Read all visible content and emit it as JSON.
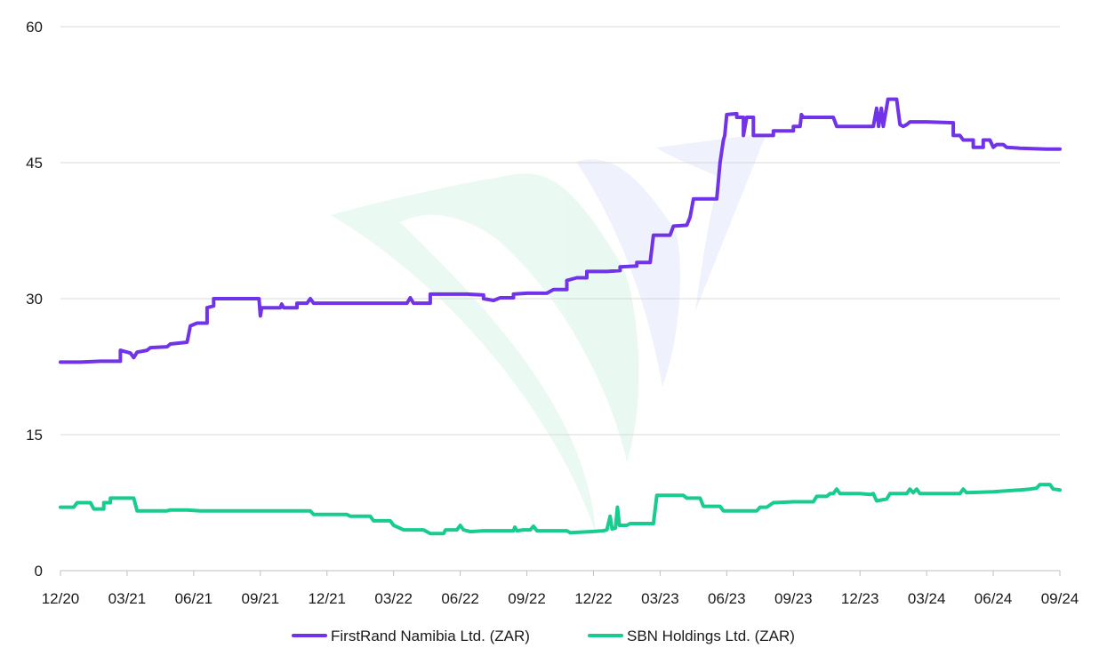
{
  "chart_data": {
    "type": "line",
    "title": "",
    "xlabel": "",
    "ylabel": "",
    "ylim": [
      0,
      60
    ],
    "yticks": [
      "0",
      "15",
      "30",
      "45",
      "60"
    ],
    "xticks": [
      "12/20",
      "03/21",
      "06/21",
      "09/21",
      "12/21",
      "03/22",
      "06/22",
      "09/22",
      "12/22",
      "03/23",
      "06/23",
      "09/23",
      "12/23",
      "03/24",
      "06/24",
      "09/24"
    ],
    "grid": "horizontal",
    "legend": "bottom-center",
    "series": [
      {
        "name": "FirstRand Namibia Ltd. (ZAR)",
        "color": "#7033e8",
        "points": [
          [
            0.0,
            23.0
          ],
          [
            0.3,
            23.0
          ],
          [
            0.6,
            23.1
          ],
          [
            0.9,
            23.1
          ],
          [
            0.9,
            24.3
          ],
          [
            1.05,
            24.0
          ],
          [
            1.1,
            23.5
          ],
          [
            1.15,
            24.1
          ],
          [
            1.3,
            24.3
          ],
          [
            1.35,
            24.6
          ],
          [
            1.6,
            24.7
          ],
          [
            1.65,
            25.0
          ],
          [
            1.9,
            25.2
          ],
          [
            1.95,
            27.0
          ],
          [
            2.05,
            27.3
          ],
          [
            2.2,
            27.3
          ],
          [
            2.2,
            29.0
          ],
          [
            2.3,
            29.2
          ],
          [
            2.3,
            30.0
          ],
          [
            2.6,
            30.0
          ],
          [
            2.98,
            30.0
          ],
          [
            3.0,
            28.1
          ],
          [
            3.02,
            29.0
          ],
          [
            3.3,
            29.0
          ],
          [
            3.32,
            29.4
          ],
          [
            3.35,
            29.0
          ],
          [
            3.55,
            29.0
          ],
          [
            3.55,
            29.5
          ],
          [
            3.7,
            29.5
          ],
          [
            3.75,
            30.0
          ],
          [
            3.8,
            29.5
          ],
          [
            4.0,
            29.5
          ],
          [
            4.4,
            29.5
          ],
          [
            4.9,
            29.5
          ],
          [
            5.2,
            29.5
          ],
          [
            5.25,
            30.1
          ],
          [
            5.3,
            29.5
          ],
          [
            5.55,
            29.5
          ],
          [
            5.55,
            30.5
          ],
          [
            6.1,
            30.5
          ],
          [
            6.35,
            30.4
          ],
          [
            6.35,
            30.0
          ],
          [
            6.5,
            29.8
          ],
          [
            6.6,
            30.1
          ],
          [
            6.8,
            30.1
          ],
          [
            6.8,
            30.5
          ],
          [
            7.0,
            30.6
          ],
          [
            7.3,
            30.6
          ],
          [
            7.4,
            31.0
          ],
          [
            7.6,
            31.0
          ],
          [
            7.6,
            32.0
          ],
          [
            7.75,
            32.3
          ],
          [
            7.9,
            32.3
          ],
          [
            7.9,
            33.0
          ],
          [
            8.2,
            33.0
          ],
          [
            8.4,
            33.1
          ],
          [
            8.4,
            33.5
          ],
          [
            8.65,
            33.6
          ],
          [
            8.65,
            34.0
          ],
          [
            8.85,
            34.0
          ],
          [
            8.9,
            37.0
          ],
          [
            9.15,
            37.0
          ],
          [
            9.2,
            38.0
          ],
          [
            9.4,
            38.1
          ],
          [
            9.45,
            39.0
          ],
          [
            9.5,
            41.0
          ],
          [
            9.85,
            41.0
          ],
          [
            9.9,
            45.0
          ],
          [
            9.95,
            47.5
          ],
          [
            9.97,
            48.0
          ],
          [
            10.0,
            50.3
          ],
          [
            10.15,
            50.4
          ],
          [
            10.15,
            50.0
          ],
          [
            10.25,
            50.0
          ],
          [
            10.25,
            48.0
          ],
          [
            10.3,
            50.0
          ],
          [
            10.4,
            50.0
          ],
          [
            10.4,
            48.0
          ],
          [
            10.7,
            48.0
          ],
          [
            10.7,
            48.5
          ],
          [
            11.0,
            48.5
          ],
          [
            11.0,
            49.0
          ],
          [
            11.1,
            49.0
          ],
          [
            11.12,
            50.3
          ],
          [
            11.15,
            50.0
          ],
          [
            11.6,
            50.0
          ],
          [
            11.65,
            49.0
          ],
          [
            11.9,
            49.0
          ],
          [
            12.2,
            49.0
          ],
          [
            12.25,
            51.0
          ],
          [
            12.28,
            49.0
          ],
          [
            12.32,
            51.0
          ],
          [
            12.35,
            49.0
          ],
          [
            12.42,
            52.0
          ],
          [
            12.55,
            52.0
          ],
          [
            12.6,
            49.2
          ],
          [
            12.65,
            49.0
          ],
          [
            12.7,
            49.2
          ],
          [
            12.75,
            49.5
          ],
          [
            13.0,
            49.5
          ],
          [
            13.4,
            49.4
          ],
          [
            13.4,
            48.0
          ],
          [
            13.5,
            48.0
          ],
          [
            13.55,
            47.5
          ],
          [
            13.7,
            47.5
          ],
          [
            13.7,
            46.7
          ],
          [
            13.85,
            46.7
          ],
          [
            13.85,
            47.5
          ],
          [
            13.95,
            47.5
          ],
          [
            14.0,
            46.7
          ],
          [
            14.05,
            47.0
          ],
          [
            14.15,
            47.0
          ],
          [
            14.2,
            46.7
          ],
          [
            14.4,
            46.6
          ],
          [
            14.8,
            46.5
          ],
          [
            15.0,
            46.5
          ]
        ]
      },
      {
        "name": "SBN Holdings Ltd. (ZAR)",
        "color": "#18cc8f",
        "points": [
          [
            0.0,
            7.0
          ],
          [
            0.2,
            7.0
          ],
          [
            0.25,
            7.5
          ],
          [
            0.45,
            7.5
          ],
          [
            0.5,
            6.8
          ],
          [
            0.65,
            6.8
          ],
          [
            0.65,
            7.5
          ],
          [
            0.75,
            7.5
          ],
          [
            0.75,
            8.0
          ],
          [
            1.1,
            8.0
          ],
          [
            1.15,
            6.6
          ],
          [
            1.6,
            6.6
          ],
          [
            1.65,
            6.7
          ],
          [
            1.9,
            6.7
          ],
          [
            2.1,
            6.6
          ],
          [
            2.5,
            6.6
          ],
          [
            3.0,
            6.6
          ],
          [
            3.5,
            6.6
          ],
          [
            3.75,
            6.6
          ],
          [
            3.8,
            6.2
          ],
          [
            4.3,
            6.2
          ],
          [
            4.35,
            6.0
          ],
          [
            4.65,
            6.0
          ],
          [
            4.7,
            5.5
          ],
          [
            4.95,
            5.5
          ],
          [
            5.0,
            5.0
          ],
          [
            5.15,
            4.5
          ],
          [
            5.45,
            4.5
          ],
          [
            5.55,
            4.1
          ],
          [
            5.75,
            4.1
          ],
          [
            5.78,
            4.5
          ],
          [
            5.95,
            4.5
          ],
          [
            6.0,
            5.0
          ],
          [
            6.05,
            4.5
          ],
          [
            6.15,
            4.3
          ],
          [
            6.35,
            4.4
          ],
          [
            6.8,
            4.4
          ],
          [
            6.82,
            4.8
          ],
          [
            6.85,
            4.4
          ],
          [
            6.95,
            4.5
          ],
          [
            7.05,
            4.5
          ],
          [
            7.1,
            4.9
          ],
          [
            7.15,
            4.4
          ],
          [
            7.5,
            4.4
          ],
          [
            7.6,
            4.4
          ],
          [
            7.65,
            4.2
          ],
          [
            7.95,
            4.3
          ],
          [
            8.15,
            4.4
          ],
          [
            8.2,
            4.5
          ],
          [
            8.25,
            6.0
          ],
          [
            8.28,
            4.6
          ],
          [
            8.33,
            4.7
          ],
          [
            8.36,
            7.0
          ],
          [
            8.39,
            5.0
          ],
          [
            8.5,
            5.0
          ],
          [
            8.55,
            5.2
          ],
          [
            8.9,
            5.2
          ],
          [
            8.95,
            8.3
          ],
          [
            9.35,
            8.3
          ],
          [
            9.4,
            8.0
          ],
          [
            9.6,
            8.0
          ],
          [
            9.65,
            7.1
          ],
          [
            9.9,
            7.1
          ],
          [
            9.95,
            6.6
          ],
          [
            10.0,
            6.6
          ],
          [
            10.45,
            6.6
          ],
          [
            10.5,
            7.0
          ],
          [
            10.6,
            7.0
          ],
          [
            10.7,
            7.5
          ],
          [
            11.0,
            7.6
          ],
          [
            11.3,
            7.6
          ],
          [
            11.35,
            8.2
          ],
          [
            11.5,
            8.2
          ],
          [
            11.55,
            8.5
          ],
          [
            11.6,
            8.5
          ],
          [
            11.65,
            9.0
          ],
          [
            11.7,
            8.5
          ],
          [
            12.0,
            8.5
          ],
          [
            12.15,
            8.4
          ],
          [
            12.2,
            8.5
          ],
          [
            12.25,
            7.7
          ],
          [
            12.4,
            7.9
          ],
          [
            12.45,
            8.5
          ],
          [
            12.65,
            8.5
          ],
          [
            12.7,
            8.5
          ],
          [
            12.75,
            9.0
          ],
          [
            12.8,
            8.6
          ],
          [
            12.85,
            9.0
          ],
          [
            12.9,
            8.5
          ],
          [
            13.5,
            8.5
          ],
          [
            13.55,
            9.0
          ],
          [
            13.6,
            8.6
          ],
          [
            14.0,
            8.7
          ],
          [
            14.4,
            8.9
          ],
          [
            14.55,
            9.0
          ],
          [
            14.65,
            9.1
          ],
          [
            14.7,
            9.5
          ],
          [
            14.85,
            9.5
          ],
          [
            14.9,
            9.0
          ],
          [
            15.0,
            8.9
          ]
        ]
      }
    ]
  }
}
